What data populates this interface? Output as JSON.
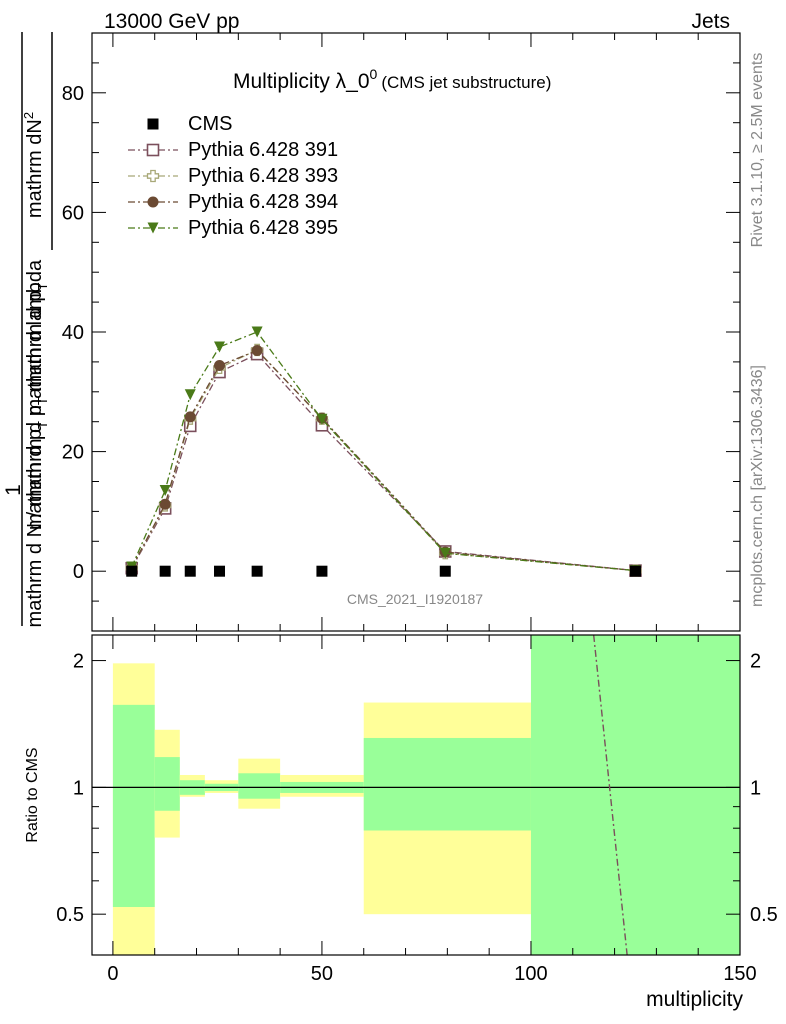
{
  "header": {
    "left": "13000 GeV pp",
    "right": "Jets"
  },
  "side": {
    "top": "Rivet 3.1.10, ≥ 2.5M events",
    "bottom": "mcplots.cern.ch [arXiv:1306.3436]"
  },
  "chart_data": {
    "type": "line",
    "title": "Multiplicity λ_0",
    "title_sup": "0",
    "subtitle": "(CMS jet substructure)",
    "watermark": "CMS_2021_I1920187",
    "ylabel_num": "mathrm dN",
    "ylabel_num_sup": "2",
    "ylabel_den": "mathrm d p",
    "ylabel_den_sub": "T",
    "ylabel_den_rest": " mathrm d lambda",
    "ylabel_den2": "mathrm d N / mathrm d p",
    "ylabel_den2_sub": "T",
    "ylabel_den2_rest": " mathrm d p",
    "ylabel_den2_sub2": "T",
    "ylabel_one": "1",
    "xlabel": "multiplicity",
    "ratio_ylabel": "Ratio to CMS",
    "xlim": [
      -5,
      150
    ],
    "ylim": [
      -10,
      90
    ],
    "ratio_ylim": [
      0.4,
      2.3
    ],
    "x_ticks": [
      "0",
      "50",
      "100",
      "150"
    ],
    "x_tick_values": [
      0,
      50,
      100,
      150
    ],
    "y_ticks": [
      "0",
      "20",
      "40",
      "60",
      "80"
    ],
    "y_tick_values": [
      0,
      20,
      40,
      60,
      80
    ],
    "ratio_ticks": [
      "0.5",
      "1",
      "2"
    ],
    "ratio_tick_values": [
      0.5,
      1,
      2
    ],
    "x": [
      4.5,
      12.5,
      18.5,
      25.5,
      34.5,
      50,
      79.5,
      125
    ],
    "cms": [
      0,
      0,
      0,
      0,
      0,
      0,
      0,
      0
    ],
    "series": [
      {
        "name": "CMS",
        "marker": "square-filled",
        "color": "#000000"
      },
      {
        "name": "Pythia 6.428 391",
        "marker": "square-open",
        "color": "#7b4f5c",
        "values": [
          0.5,
          10.5,
          24.3,
          33.3,
          36.3,
          24.4,
          3.3,
          0.1
        ]
      },
      {
        "name": "Pythia 6.428 393",
        "marker": "cross-open",
        "color": "#a8a878",
        "values": [
          0.6,
          11.0,
          25.5,
          34.0,
          37.0,
          25.5,
          3.0,
          0.1
        ]
      },
      {
        "name": "Pythia 6.428 394",
        "marker": "circle-filled",
        "color": "#6b4a33",
        "values": [
          0.6,
          11.2,
          25.8,
          34.4,
          36.9,
          25.6,
          3.2,
          0.1
        ]
      },
      {
        "name": "Pythia 6.428 395",
        "marker": "triangle-down-filled",
        "color": "#4a7a18",
        "values": [
          0.7,
          13.5,
          29.5,
          37.5,
          40.0,
          25.4,
          3.0,
          0.1
        ]
      }
    ],
    "ratio_bands": [
      {
        "x0": 0,
        "x1": 10,
        "green": [
          0.52,
          1.57
        ],
        "yellow": [
          0.4,
          1.97
        ]
      },
      {
        "x0": 10,
        "x1": 16,
        "green": [
          0.88,
          1.18
        ],
        "yellow": [
          0.76,
          1.37
        ]
      },
      {
        "x0": 16,
        "x1": 22,
        "green": [
          0.96,
          1.04
        ],
        "yellow": [
          0.95,
          1.07
        ]
      },
      {
        "x0": 22,
        "x1": 30,
        "green": [
          0.98,
          1.02
        ],
        "yellow": [
          0.97,
          1.04
        ]
      },
      {
        "x0": 30,
        "x1": 40,
        "green": [
          0.94,
          1.08
        ],
        "yellow": [
          0.89,
          1.17
        ]
      },
      {
        "x0": 40,
        "x1": 60,
        "green": [
          0.97,
          1.03
        ],
        "yellow": [
          0.95,
          1.07
        ]
      },
      {
        "x0": 60,
        "x1": 100,
        "green": [
          0.79,
          1.31
        ],
        "yellow": [
          0.5,
          1.59
        ]
      },
      {
        "x0": 100,
        "x1": 150,
        "green": [
          0.4,
          2.3
        ],
        "yellow": [
          0.4,
          2.3
        ]
      }
    ],
    "ratio_line": {
      "x": [
        115,
        123
      ],
      "y": [
        2.3,
        0.4
      ],
      "color": "#7b4f5c"
    },
    "colors": {
      "green": "#99ff99",
      "yellow": "#ffff99"
    }
  }
}
